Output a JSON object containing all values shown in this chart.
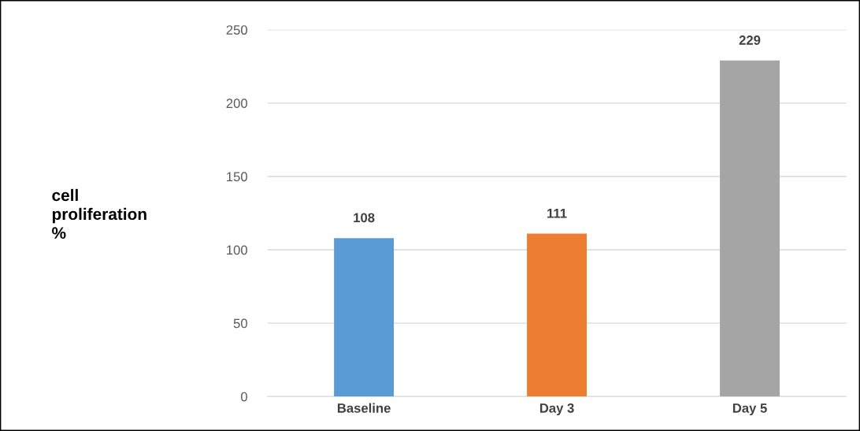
{
  "chart_data": {
    "type": "bar",
    "ylabel": "cell\nproliferation\n%",
    "categories": [
      "Baseline",
      "Day 3",
      "Day 5"
    ],
    "values": [
      108,
      111,
      229
    ],
    "colors": [
      "#5b9bd5",
      "#ed7d31",
      "#a5a5a5"
    ],
    "ylim": [
      0,
      250
    ],
    "yticks": [
      0,
      50,
      100,
      150,
      200,
      250
    ],
    "grid": "y",
    "data_labels": true
  }
}
